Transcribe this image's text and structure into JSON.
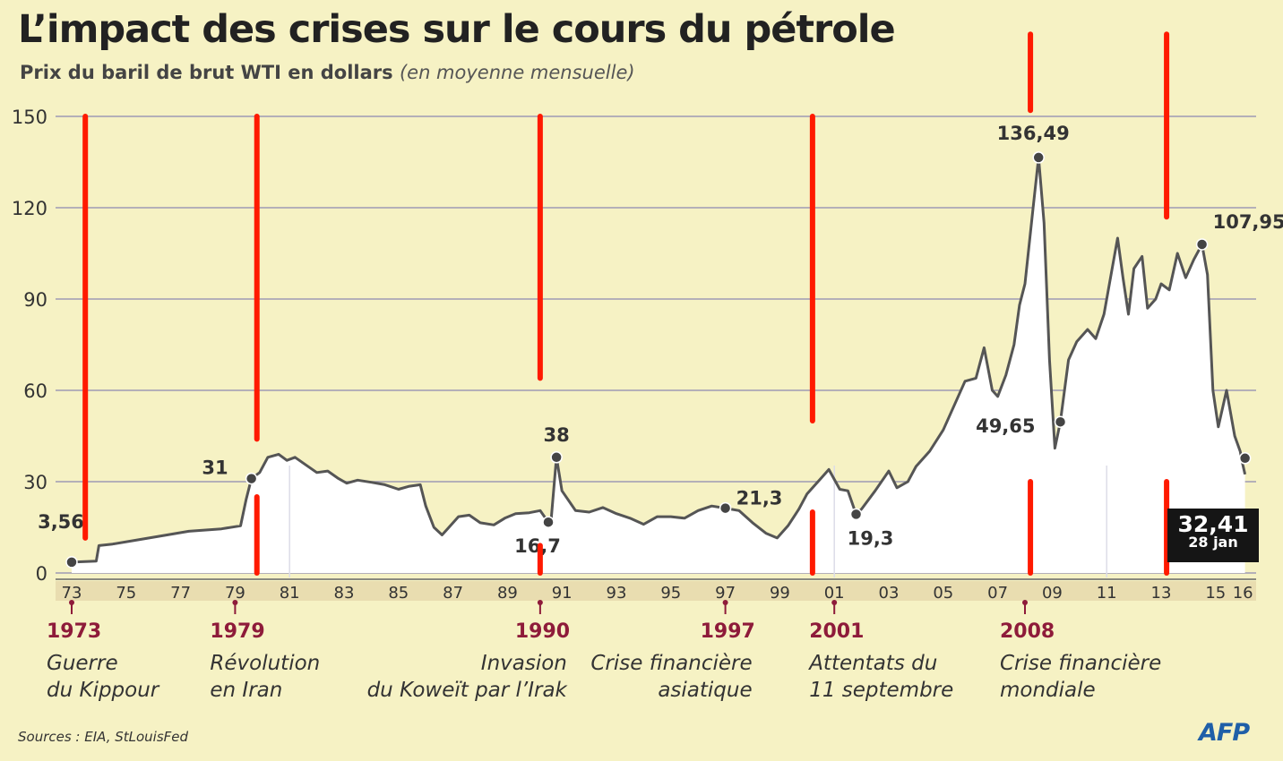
{
  "title": "L’impact des crises sur le cours du pétrole",
  "subtitle_main": "Prix du baril de brut WTI en dollars",
  "subtitle_note": "(en moyenne mensuelle)",
  "source": "Sources : EIA, StLouisFed",
  "logo_text": "AFP",
  "colors": {
    "background": "#f6f2c4",
    "line": "#555555",
    "area": "#ffffff",
    "grid": "#9e9ab4",
    "event_marker": "#ff1a00",
    "event_year": "#8e1b3a"
  },
  "chart_data": {
    "type": "area",
    "title": "L’impact des crises sur le cours du pétrole",
    "ylabel": "Prix du baril de brut WTI en dollars",
    "ylim": [
      0,
      150
    ],
    "yticks": [
      "0",
      "30",
      "60",
      "90",
      "120",
      "150"
    ],
    "xticks": [
      "73",
      "75",
      "77",
      "79",
      "81",
      "83",
      "85",
      "87",
      "89",
      "91",
      "93",
      "95",
      "97",
      "99",
      "01",
      "03",
      "05",
      "07",
      "09",
      "11",
      "13",
      "15",
      "16"
    ],
    "grid": true,
    "series": [
      {
        "x": [
          1973.0,
          1973.9,
          1974.0,
          1974.5,
          1975.5,
          1976.5,
          1977.3,
          1978.5,
          1979.2,
          1979.4,
          1979.6,
          1979.9,
          1980.2,
          1980.6,
          1980.9,
          1981.2,
          1981.6,
          1982.0,
          1982.4,
          1982.8,
          1983.1,
          1983.5,
          1984.0,
          1984.5,
          1985.0,
          1985.4,
          1985.8,
          1986.0,
          1986.3,
          1986.6,
          1986.8,
          1987.2,
          1987.6,
          1988.0,
          1988.5,
          1988.9,
          1989.3,
          1989.8,
          1990.2,
          1990.5,
          1990.6,
          1990.8,
          1991.0,
          1991.5,
          1992.0,
          1992.5,
          1993.0,
          1993.5,
          1994.0,
          1994.5,
          1995.0,
          1995.5,
          1996.0,
          1996.5,
          1997.0,
          1997.5,
          1998.0,
          1998.5,
          1998.9,
          1999.3,
          1999.7,
          2000.0,
          2000.5,
          2000.8,
          2001.2,
          2001.5,
          2001.8,
          2002.0,
          2002.5,
          2003.0,
          2003.3,
          2003.7,
          2004.0,
          2004.5,
          2005.0,
          2005.5,
          2005.8,
          2006.2,
          2006.5,
          2006.8,
          2007.0,
          2007.3,
          2007.6,
          2007.8,
          2008.0,
          2008.3,
          2008.5,
          2008.7,
          2008.9,
          2009.1,
          2009.3,
          2009.6,
          2009.9,
          2010.3,
          2010.6,
          2010.9,
          2011.2,
          2011.4,
          2011.6,
          2011.8,
          2012.0,
          2012.3,
          2012.5,
          2012.8,
          2013.0,
          2013.3,
          2013.6,
          2013.9,
          2014.2,
          2014.5,
          2014.7,
          2014.9,
          2015.1,
          2015.4,
          2015.7,
          2015.9,
          2016.0,
          2016.08
        ],
        "values": [
          3.56,
          3.9,
          9.0,
          9.5,
          11.0,
          12.5,
          13.7,
          14.5,
          15.5,
          24.0,
          31.0,
          33.0,
          38.0,
          39.0,
          37.0,
          38.0,
          35.5,
          33.0,
          33.5,
          31.0,
          29.5,
          30.5,
          29.8,
          29.0,
          27.5,
          28.5,
          29.0,
          22.0,
          15.0,
          12.5,
          14.5,
          18.5,
          19.0,
          16.5,
          15.8,
          18.0,
          19.5,
          19.8,
          20.5,
          16.7,
          17.0,
          38.0,
          27.0,
          20.5,
          20.0,
          21.5,
          19.5,
          18.0,
          16.0,
          18.5,
          18.5,
          18.0,
          20.5,
          22.0,
          21.3,
          20.5,
          16.5,
          13.0,
          11.5,
          15.5,
          21.0,
          26.0,
          31.0,
          34.0,
          27.5,
          27.0,
          19.3,
          21.0,
          27.0,
          33.5,
          28.0,
          30.0,
          35.0,
          40.0,
          47.0,
          57.0,
          63.0,
          64.0,
          74.0,
          60.0,
          58.0,
          65.0,
          75.0,
          88.0,
          95.0,
          120.0,
          136.49,
          115.0,
          70.0,
          41.0,
          49.65,
          70.0,
          76.0,
          80.0,
          77.0,
          85.0,
          100.0,
          110.0,
          97.0,
          85.0,
          100.0,
          104.0,
          87.0,
          90.0,
          95.0,
          93.0,
          105.0,
          97.0,
          103.0,
          107.95,
          98.0,
          60.0,
          48.0,
          60.0,
          45.0,
          40.0,
          35.5,
          32.41
        ]
      }
    ],
    "annotations": [
      {
        "x": 1973.0,
        "y": 3.56,
        "label": "3,56"
      },
      {
        "x": 1979.6,
        "y": 31.0,
        "label": "31"
      },
      {
        "x": 1990.5,
        "y": 16.7,
        "label": "16,7"
      },
      {
        "x": 1990.8,
        "y": 38.0,
        "label": "38"
      },
      {
        "x": 1997.0,
        "y": 21.3,
        "label": "21,3"
      },
      {
        "x": 2001.8,
        "y": 19.3,
        "label": "19,3"
      },
      {
        "x": 2008.5,
        "y": 136.49,
        "label": "136,49"
      },
      {
        "x": 2009.3,
        "y": 49.65,
        "label": "49,65"
      },
      {
        "x": 2014.5,
        "y": 107.95,
        "label": "107,95"
      }
    ],
    "last_value": {
      "x": 2016.08,
      "y": 32.41,
      "label": "32,41",
      "date": "28 jan"
    }
  },
  "events": [
    {
      "year": "1973",
      "x": 1973.0,
      "label_line1": "Guerre",
      "label_line2": "du Kippour"
    },
    {
      "year": "1979",
      "x": 1979.0,
      "label_line1": "Révolution",
      "label_line2": "en Iran"
    },
    {
      "year": "1990",
      "x": 1990.2,
      "label_line1": "Invasion",
      "label_line2": "du Koweït par l’Irak"
    },
    {
      "year": "1997",
      "x": 1997.0,
      "label_line1": "Crise financière",
      "label_line2": "asiatique"
    },
    {
      "year": "2001",
      "x": 2001.0,
      "label_line1": "Attentats du",
      "label_line2": "11 septembre"
    },
    {
      "year": "2008",
      "x": 2008.0,
      "label_line1": "Crise financière",
      "label_line2": "mondiale"
    }
  ],
  "event_lines": [
    {
      "x": 1973.5,
      "from": 150,
      "to": 11.5
    },
    {
      "x": 1979.8,
      "from": 150,
      "to": 44
    },
    {
      "x": 1979.8,
      "from": 25,
      "to": 0
    },
    {
      "x": 1990.2,
      "from": 150,
      "to": 64
    },
    {
      "x": 1990.2,
      "from": 9,
      "to": 0
    },
    {
      "x": 2000.2,
      "from": 150,
      "to": 50
    },
    {
      "x": 2000.2,
      "from": 20,
      "to": 0
    },
    {
      "x": 2008.2,
      "from": 177,
      "to": 152
    },
    {
      "x": 2008.2,
      "from": 30,
      "to": 0
    },
    {
      "x": 2013.2,
      "from": 177,
      "to": 117
    },
    {
      "x": 2013.2,
      "from": 30,
      "to": 0
    }
  ]
}
